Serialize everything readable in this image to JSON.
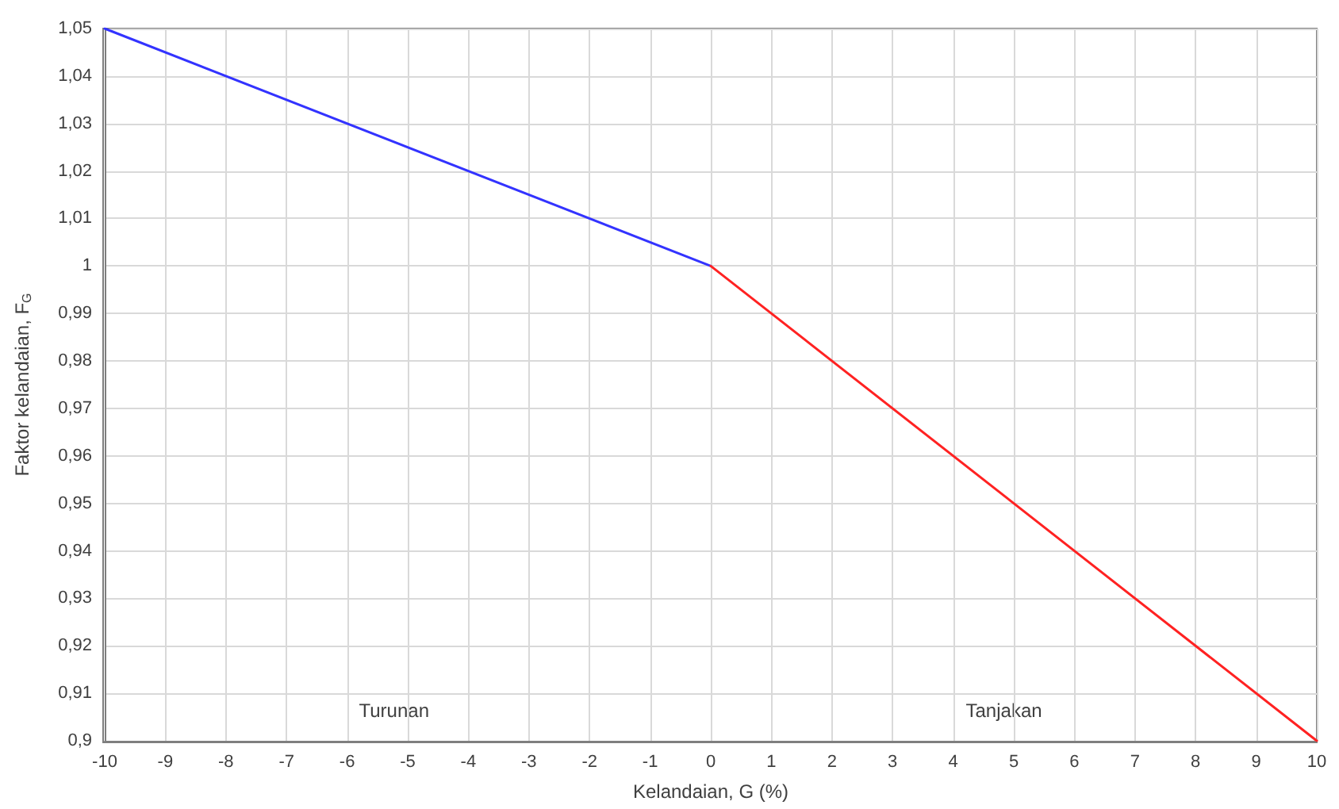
{
  "chart_data": {
    "type": "line",
    "xlabel": "Kelandaian, G (%)",
    "ylabel": "Faktor kelandaian, F$_{G}$",
    "series": [
      {
        "color": "#3333ff",
        "x": [
          -10,
          0
        ],
        "values": [
          1.05,
          1.0
        ]
      },
      {
        "color": "#ff2222",
        "x": [
          0,
          10
        ],
        "values": [
          1.0,
          0.9
        ]
      }
    ],
    "annotations": [
      "Turunan",
      "Tanjakan"
    ],
    "xlim": [
      -10,
      10
    ],
    "xticks": [
      -10,
      -9,
      -8,
      -7,
      -6,
      -5,
      -4,
      -3,
      -2,
      -1,
      0,
      1,
      2,
      3,
      4,
      5,
      6,
      7,
      8,
      9,
      10
    ],
    "ylim": [
      0.9,
      1.05
    ],
    "yticks": [
      {
        "value": 0.9,
        "label": "0,9"
      },
      {
        "value": 0.91,
        "label": "0,91"
      },
      {
        "value": 0.92,
        "label": "0,92"
      },
      {
        "value": 0.93,
        "label": "0,93"
      },
      {
        "value": 0.94,
        "label": "0,94"
      },
      {
        "value": 0.95,
        "label": "0,95"
      },
      {
        "value": 0.96,
        "label": "0,96"
      },
      {
        "value": 0.97,
        "label": "0,97"
      },
      {
        "value": 0.98,
        "label": "0,98"
      },
      {
        "value": 0.99,
        "label": "0,99"
      },
      {
        "value": 1,
        "label": "1"
      },
      {
        "value": 1.01,
        "label": "1,01"
      },
      {
        "value": 1.02,
        "label": "1,02"
      },
      {
        "value": 1.03,
        "label": "1,03"
      },
      {
        "value": 1.04,
        "label": "1,04"
      },
      {
        "value": 1.05,
        "label": "1,05"
      }
    ],
    "grid": true,
    "marker": "none",
    "line_style": "solid"
  }
}
